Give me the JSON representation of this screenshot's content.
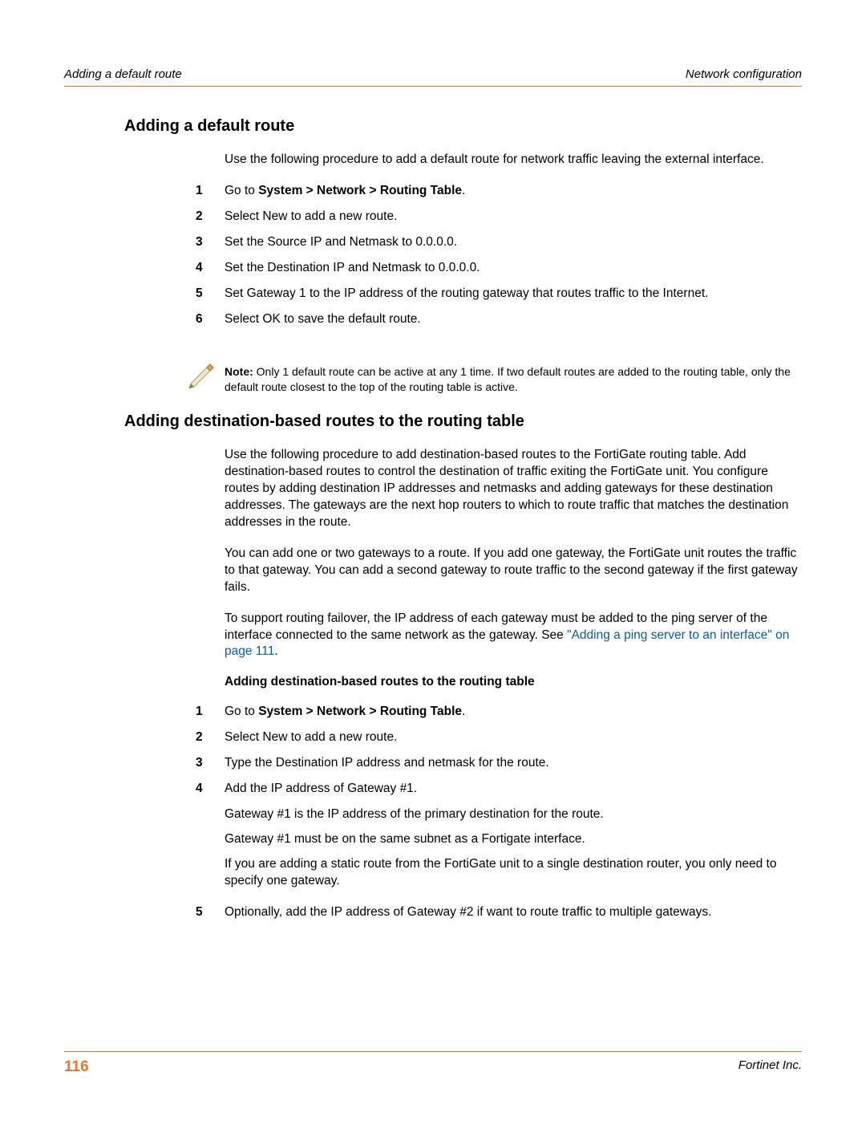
{
  "colors": {
    "rule": "#e8762c",
    "link": "#0a5aa8",
    "text": "#000000",
    "background": "#ffffff"
  },
  "header": {
    "left": "Adding a default route",
    "right": "Network configuration"
  },
  "section1": {
    "heading": "Adding a default route",
    "intro": "Use the following procedure to add a default route for network traffic leaving the external interface.",
    "steps": [
      {
        "n": "1",
        "prefix": "Go to ",
        "bold": "System > Network > Routing Table",
        "suffix": "."
      },
      {
        "n": "2",
        "plain": "Select New to add a new route."
      },
      {
        "n": "3",
        "plain": "Set the Source IP and Netmask to 0.0.0.0."
      },
      {
        "n": "4",
        "plain": "Set the Destination IP and Netmask to 0.0.0.0."
      },
      {
        "n": "5",
        "plain": "Set Gateway 1 to the IP address of the routing gateway that routes traffic to the Internet."
      },
      {
        "n": "6",
        "plain": "Select OK to save the default route."
      }
    ]
  },
  "note": {
    "label": "Note:",
    "text": " Only 1 default route can be active at any 1 time. If two default routes are added to the routing table, only the default route closest to the top of the routing table is active."
  },
  "section2": {
    "heading": "Adding destination-based routes to the routing table",
    "para1": "Use the following procedure to add destination-based routes to the FortiGate routing table. Add destination-based routes to control the destination of traffic exiting the FortiGate unit. You configure routes by adding destination IP addresses and netmasks and adding gateways for these destination addresses. The gateways are the next hop routers to which to route traffic that matches the destination addresses in the route.",
    "para2": "You can add one or two gateways to a route. If you add one gateway, the FortiGate unit routes the traffic to that gateway. You can add a second gateway to route traffic to the second gateway if the first gateway fails.",
    "para3_a": "To support routing failover, the IP address of each gateway must be added to the ping server of the interface connected to the same network as the gateway. See ",
    "para3_link": "\"Adding a ping server to an interface\" on page 111",
    "para3_c": ".",
    "subheading": "Adding destination-based routes to the routing table",
    "steps": [
      {
        "n": "1",
        "prefix": "Go to ",
        "bold": "System > Network > Routing Table",
        "suffix": "."
      },
      {
        "n": "2",
        "plain": "Select New to add a new route."
      },
      {
        "n": "3",
        "plain": "Type the Destination IP address and netmask for the route."
      },
      {
        "n": "4",
        "plain": "Add the IP address of Gateway #1.",
        "subs": [
          "Gateway #1 is the IP address of the primary destination for the route.",
          "Gateway #1 must be on the same subnet as a Fortigate interface.",
          "If you are adding a static route from the FortiGate unit to a single destination router, you only need to specify one gateway."
        ]
      },
      {
        "n": "5",
        "plain": "Optionally, add the IP address of Gateway #2 if want to route traffic to multiple gateways."
      }
    ]
  },
  "footer": {
    "page": "116",
    "right": "Fortinet Inc."
  }
}
